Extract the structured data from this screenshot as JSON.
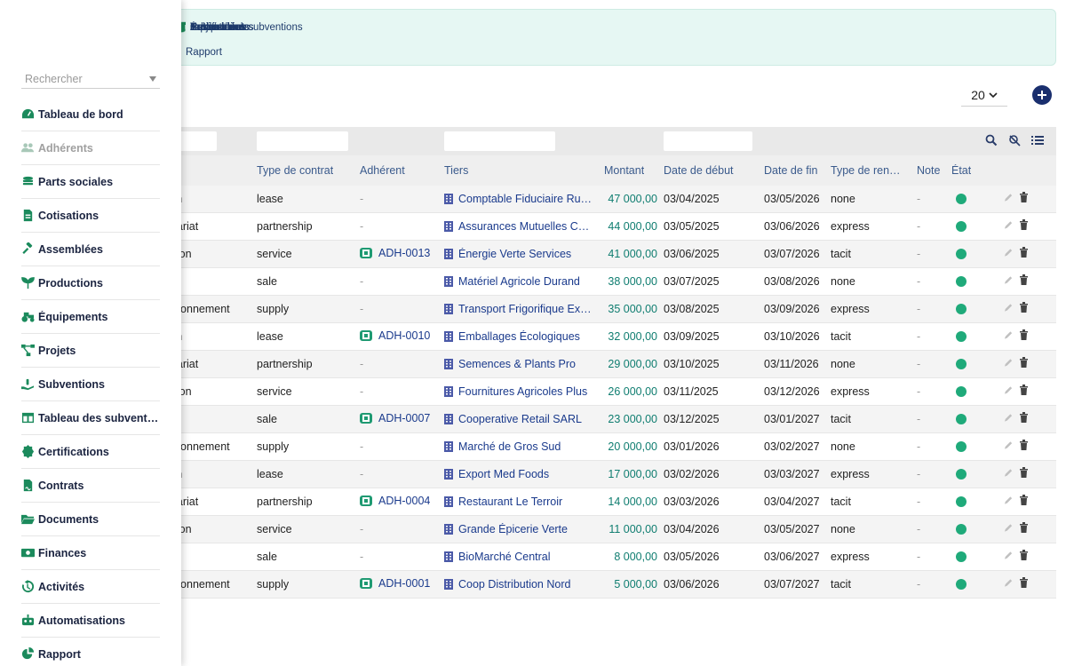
{
  "topnav": {
    "row1": [
      {
        "label": "s",
        "icon": "users-icon"
      },
      {
        "label": "Parts sociales",
        "icon": "coins-icon"
      },
      {
        "label": "Cotisations",
        "icon": "file-invoice-icon"
      },
      {
        "label": "Assemblées",
        "icon": "gavel-icon"
      },
      {
        "label": "Productions",
        "icon": "seedling-icon"
      },
      {
        "label": "Équipements",
        "icon": "tractor-icon"
      },
      {
        "label": "Projets",
        "icon": "project-diagram-icon"
      },
      {
        "label": "Subventions",
        "icon": "hand-holding-icon"
      },
      {
        "label": "Tableau des subventions",
        "icon": "table-icon"
      },
      {
        "label": "Certifications",
        "icon": "certificate-icon"
      }
    ],
    "row2": [
      {
        "label": "Rapport",
        "icon": "chart-pie-icon"
      }
    ]
  },
  "toolbar": {
    "page_size": "20"
  },
  "table": {
    "headers": {
      "type_contrat": "Type de contrat",
      "adherent": "Adhérent",
      "tiers": "Tiers",
      "montant": "Montant",
      "date_debut": "Date de début",
      "date_fin": "Date de fin",
      "type_renouvellement": "Type de ren…",
      "note": "Note",
      "etat": "État"
    },
    "rows": [
      {
        "type": "tion",
        "ctype": "lease",
        "adh": "-",
        "tiers": "Comptable Fiduciaire Ru…",
        "montant": "47 000,00",
        "debut": "03/04/2025",
        "fin": "03/05/2026",
        "ren": "none",
        "note": "-"
      },
      {
        "type": "enariat",
        "ctype": "partnership",
        "adh": "-",
        "tiers": "Assurances Mutuelles C…",
        "montant": "44 000,00",
        "debut": "03/05/2025",
        "fin": "03/06/2026",
        "ren": "express",
        "note": "-"
      },
      {
        "type": "tation",
        "ctype": "service",
        "adh": "ADH-0013",
        "tiers": "Énergie Verte Services",
        "montant": "41 000,00",
        "debut": "03/06/2025",
        "fin": "03/07/2026",
        "ren": "tacit",
        "note": "-"
      },
      {
        "type": "e",
        "ctype": "sale",
        "adh": "-",
        "tiers": "Matériel Agricole Durand",
        "montant": "38 000,00",
        "debut": "03/07/2025",
        "fin": "03/08/2026",
        "ren": "none",
        "note": "-"
      },
      {
        "type": "visionnement",
        "ctype": "supply",
        "adh": "-",
        "tiers": "Transport Frigorifique Ex…",
        "montant": "35 000,00",
        "debut": "03/08/2025",
        "fin": "03/09/2026",
        "ren": "express",
        "note": "-"
      },
      {
        "type": "tion",
        "ctype": "lease",
        "adh": "ADH-0010",
        "tiers": "Emballages Écologiques",
        "montant": "32 000,00",
        "debut": "03/09/2025",
        "fin": "03/10/2026",
        "ren": "tacit",
        "note": "-"
      },
      {
        "type": "enariat",
        "ctype": "partnership",
        "adh": "-",
        "tiers": "Semences & Plants Pro",
        "montant": "29 000,00",
        "debut": "03/10/2025",
        "fin": "03/11/2026",
        "ren": "none",
        "note": "-"
      },
      {
        "type": "tation",
        "ctype": "service",
        "adh": "-",
        "tiers": "Fournitures Agricoles Plus",
        "montant": "26 000,00",
        "debut": "03/11/2025",
        "fin": "03/12/2026",
        "ren": "express",
        "note": "-"
      },
      {
        "type": "e",
        "ctype": "sale",
        "adh": "ADH-0007",
        "tiers": "Cooperative Retail SARL",
        "montant": "23 000,00",
        "debut": "03/12/2025",
        "fin": "03/01/2027",
        "ren": "tacit",
        "note": "-"
      },
      {
        "type": "visionnement",
        "ctype": "supply",
        "adh": "-",
        "tiers": "Marché de Gros Sud",
        "montant": "20 000,00",
        "debut": "03/01/2026",
        "fin": "03/02/2027",
        "ren": "none",
        "note": "-"
      },
      {
        "type": "tion",
        "ctype": "lease",
        "adh": "-",
        "tiers": "Export Med Foods",
        "montant": "17 000,00",
        "debut": "03/02/2026",
        "fin": "03/03/2027",
        "ren": "express",
        "note": "-"
      },
      {
        "type": "enariat",
        "ctype": "partnership",
        "adh": "ADH-0004",
        "tiers": "Restaurant Le Terroir",
        "montant": "14 000,00",
        "debut": "03/03/2026",
        "fin": "03/04/2027",
        "ren": "tacit",
        "note": "-"
      },
      {
        "type": "tation",
        "ctype": "service",
        "adh": "-",
        "tiers": "Grande Épicerie Verte",
        "montant": "11 000,00",
        "debut": "03/04/2026",
        "fin": "03/05/2027",
        "ren": "none",
        "note": "-"
      },
      {
        "type": "e",
        "ctype": "sale",
        "adh": "-",
        "tiers": "BioMarché Central",
        "montant": "8 000,00",
        "debut": "03/05/2026",
        "fin": "03/06/2027",
        "ren": "express",
        "note": "-"
      },
      {
        "type": "visionnement",
        "ctype": "supply",
        "adh": "ADH-0001",
        "tiers": "Coop Distribution Nord",
        "montant": "5 000,00",
        "debut": "03/06/2026",
        "fin": "03/07/2027",
        "ren": "tacit",
        "note": "-"
      }
    ]
  },
  "sidebar": {
    "search_placeholder": "Rechercher",
    "items": [
      {
        "label": "Tableau de bord",
        "icon": "tachometer-icon"
      },
      {
        "label": "Adhérents",
        "icon": "users-icon"
      },
      {
        "label": "Parts sociales",
        "icon": "coins-icon"
      },
      {
        "label": "Cotisations",
        "icon": "file-invoice-icon"
      },
      {
        "label": "Assemblées",
        "icon": "gavel-icon"
      },
      {
        "label": "Productions",
        "icon": "seedling-icon"
      },
      {
        "label": "Équipements",
        "icon": "tractor-icon"
      },
      {
        "label": "Projets",
        "icon": "project-diagram-icon"
      },
      {
        "label": "Subventions",
        "icon": "hand-holding-icon"
      },
      {
        "label": "Tableau des subvent…",
        "icon": "table-icon"
      },
      {
        "label": "Certifications",
        "icon": "certificate-icon"
      },
      {
        "label": "Contrats",
        "icon": "file-contract-icon"
      },
      {
        "label": "Documents",
        "icon": "folder-open-icon"
      },
      {
        "label": "Finances",
        "icon": "money-icon"
      },
      {
        "label": "Activités",
        "icon": "history-icon"
      },
      {
        "label": "Automatisations",
        "icon": "robot-icon"
      },
      {
        "label": "Rapport",
        "icon": "chart-pie-icon"
      }
    ]
  },
  "colors": {
    "accent": "#1b8a5c",
    "link": "#1a3a8c",
    "amount": "#0f7d70",
    "status_active": "#1faa7a",
    "add_button": "#1a2f6e"
  }
}
